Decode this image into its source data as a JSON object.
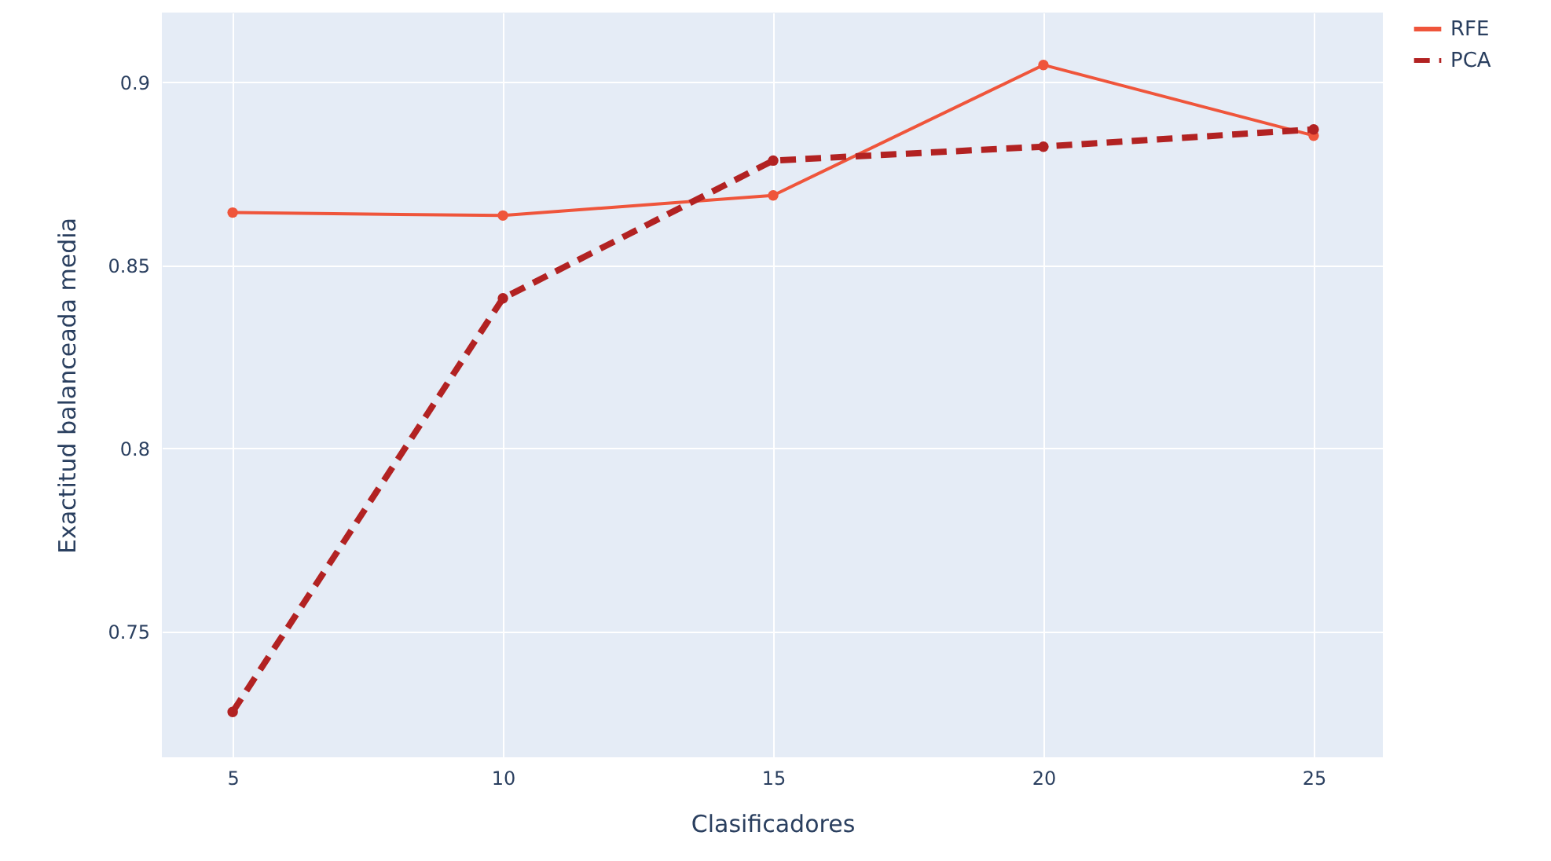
{
  "chart_data": {
    "type": "line",
    "xlabel": "Clasificadores",
    "ylabel": "Exactitud balanceada media",
    "x": [
      5,
      10,
      15,
      20,
      25
    ],
    "series": [
      {
        "name": "RFE",
        "color": "#ef553b",
        "line_style": "solid",
        "values": [
          0.8644,
          0.8636,
          0.8691,
          0.9047,
          0.8854
        ]
      },
      {
        "name": "PCA",
        "color": "#b22222",
        "line_style": "dashed",
        "values": [
          0.7281,
          0.841,
          0.8786,
          0.8824,
          0.8871
        ]
      }
    ],
    "xlim": [
      3.69,
      26.28
    ],
    "ylim": [
      0.7157,
      0.919
    ],
    "xticks": [
      5,
      10,
      15,
      20,
      25
    ],
    "yticks": [
      0.75,
      0.8,
      0.85,
      0.9
    ],
    "grid": true,
    "legend": "top right",
    "marker": "circle"
  }
}
